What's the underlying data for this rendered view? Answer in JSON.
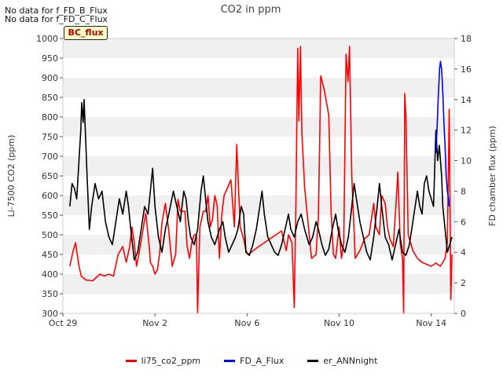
{
  "notes": [
    "No data for f_FD_B_Flux",
    "No data for f_FD_C_Flux"
  ],
  "badge": "BC_flux",
  "chart_data": {
    "type": "line",
    "title": "CO2 in ppm",
    "ylabel": "Li-7500 CO2 (ppm)",
    "y2label": "FD chamber flux (ppm)",
    "xlim": [
      0,
      17
    ],
    "ylim": [
      300,
      1000
    ],
    "y2lim": [
      0,
      18
    ],
    "grid": "horizontal bands",
    "legend_placement": "bottom-center",
    "xticks": [
      {
        "x": 0,
        "label": "Oct 29"
      },
      {
        "x": 4,
        "label": "Nov 2"
      },
      {
        "x": 8,
        "label": "Nov 6"
      },
      {
        "x": 12,
        "label": "Nov 10"
      },
      {
        "x": 16,
        "label": "Nov 14"
      }
    ],
    "yticks": [
      300,
      350,
      400,
      450,
      500,
      550,
      600,
      650,
      700,
      750,
      800,
      850,
      900,
      950,
      1000
    ],
    "y2ticks": [
      0,
      2,
      4,
      6,
      8,
      10,
      12,
      14,
      16,
      18
    ],
    "series": [
      {
        "name": "li75_co2_ppm",
        "color": "#ff0000",
        "axis": "left",
        "points": [
          [
            0.3,
            420
          ],
          [
            0.45,
            460
          ],
          [
            0.55,
            480
          ],
          [
            0.7,
            420
          ],
          [
            0.8,
            395
          ],
          [
            1.0,
            385
          ],
          [
            1.3,
            383
          ],
          [
            1.6,
            400
          ],
          [
            1.8,
            395
          ],
          [
            2.0,
            400
          ],
          [
            2.2,
            395
          ],
          [
            2.4,
            450
          ],
          [
            2.6,
            470
          ],
          [
            2.75,
            430
          ],
          [
            2.9,
            470
          ],
          [
            3.0,
            520
          ],
          [
            3.1,
            480
          ],
          [
            3.2,
            420
          ],
          [
            3.3,
            450
          ],
          [
            3.5,
            520
          ],
          [
            3.6,
            555
          ],
          [
            3.75,
            470
          ],
          [
            3.8,
            430
          ],
          [
            3.9,
            420
          ],
          [
            4.0,
            400
          ],
          [
            4.1,
            410
          ],
          [
            4.2,
            450
          ],
          [
            4.3,
            530
          ],
          [
            4.45,
            580
          ],
          [
            4.6,
            510
          ],
          [
            4.75,
            420
          ],
          [
            4.9,
            450
          ],
          [
            5.0,
            590
          ],
          [
            5.1,
            560
          ],
          [
            5.3,
            560
          ],
          [
            5.4,
            470
          ],
          [
            5.5,
            440
          ],
          [
            5.6,
            480
          ],
          [
            5.7,
            500
          ],
          [
            5.8,
            500
          ],
          [
            5.85,
            300
          ],
          [
            5.95,
            520
          ],
          [
            6.1,
            560
          ],
          [
            6.2,
            560
          ],
          [
            6.3,
            600
          ],
          [
            6.4,
            520
          ],
          [
            6.5,
            540
          ],
          [
            6.6,
            600
          ],
          [
            6.7,
            575
          ],
          [
            6.8,
            440
          ],
          [
            6.9,
            550
          ],
          [
            7.0,
            600
          ],
          [
            7.15,
            620
          ],
          [
            7.3,
            640
          ],
          [
            7.45,
            520
          ],
          [
            7.55,
            730
          ],
          [
            7.7,
            520
          ],
          [
            7.85,
            490
          ],
          [
            7.95,
            460
          ],
          [
            8.05,
            450
          ],
          [
            8.5,
            470
          ],
          [
            9.0,
            490
          ],
          [
            9.5,
            510
          ],
          [
            9.7,
            460
          ],
          [
            9.8,
            500
          ],
          [
            9.95,
            480
          ],
          [
            10.05,
            315
          ],
          [
            10.12,
            580
          ],
          [
            10.2,
            975
          ],
          [
            10.25,
            790
          ],
          [
            10.32,
            980
          ],
          [
            10.38,
            760
          ],
          [
            10.5,
            620
          ],
          [
            10.8,
            440
          ],
          [
            11.0,
            450
          ],
          [
            11.1,
            550
          ],
          [
            11.2,
            905
          ],
          [
            11.35,
            870
          ],
          [
            11.55,
            805
          ],
          [
            11.65,
            560
          ],
          [
            11.75,
            450
          ],
          [
            11.85,
            440
          ],
          [
            12.0,
            520
          ],
          [
            12.1,
            440
          ],
          [
            12.2,
            480
          ],
          [
            12.3,
            960
          ],
          [
            12.38,
            890
          ],
          [
            12.45,
            980
          ],
          [
            12.55,
            650
          ],
          [
            12.7,
            440
          ],
          [
            12.9,
            460
          ],
          [
            13.1,
            490
          ],
          [
            13.3,
            500
          ],
          [
            13.5,
            580
          ],
          [
            13.6,
            520
          ],
          [
            13.75,
            500
          ],
          [
            13.85,
            600
          ],
          [
            14.0,
            580
          ],
          [
            14.1,
            520
          ],
          [
            14.2,
            490
          ],
          [
            14.35,
            470
          ],
          [
            14.45,
            560
          ],
          [
            14.55,
            660
          ],
          [
            14.65,
            480
          ],
          [
            14.75,
            440
          ],
          [
            14.8,
            300
          ],
          [
            14.85,
            860
          ],
          [
            14.9,
            800
          ],
          [
            15.0,
            500
          ],
          [
            15.2,
            460
          ],
          [
            15.4,
            440
          ],
          [
            15.6,
            430
          ],
          [
            15.8,
            425
          ],
          [
            16.0,
            420
          ],
          [
            16.2,
            428
          ],
          [
            16.4,
            420
          ],
          [
            16.6,
            440
          ],
          [
            16.7,
            480
          ],
          [
            16.78,
            820
          ],
          [
            16.85,
            335
          ],
          [
            16.9,
            450
          ]
        ]
      },
      {
        "name": "FD_A_Flux",
        "color": "#0000ff",
        "axis": "right",
        "points": [
          [
            16.2,
            10.5
          ],
          [
            16.25,
            12.0
          ],
          [
            16.3,
            14.0
          ],
          [
            16.36,
            16.0
          ],
          [
            16.4,
            16.5
          ],
          [
            16.45,
            16.0
          ],
          [
            16.5,
            14.5
          ],
          [
            16.55,
            12.5
          ],
          [
            16.6,
            11.0
          ],
          [
            16.65,
            9.0
          ],
          [
            16.7,
            8.0
          ],
          [
            16.75,
            7.5
          ],
          [
            16.78,
            7.0
          ]
        ]
      },
      {
        "name": "er_ANNnight",
        "color": "#000000",
        "axis": "right",
        "points": [
          [
            0.3,
            7.0
          ],
          [
            0.4,
            8.5
          ],
          [
            0.5,
            8.2
          ],
          [
            0.6,
            7.5
          ],
          [
            0.7,
            10.0
          ],
          [
            0.78,
            12.0
          ],
          [
            0.82,
            13.8
          ],
          [
            0.88,
            12.5
          ],
          [
            0.92,
            14.0
          ],
          [
            1.0,
            11.0
          ],
          [
            1.05,
            9.0
          ],
          [
            1.15,
            5.5
          ],
          [
            1.25,
            7.0
          ],
          [
            1.4,
            8.5
          ],
          [
            1.55,
            7.5
          ],
          [
            1.7,
            8.0
          ],
          [
            1.85,
            6.0
          ],
          [
            2.0,
            5.0
          ],
          [
            2.15,
            4.5
          ],
          [
            2.3,
            6.0
          ],
          [
            2.45,
            7.5
          ],
          [
            2.6,
            6.5
          ],
          [
            2.75,
            8.0
          ],
          [
            2.85,
            7.0
          ],
          [
            2.95,
            5.5
          ],
          [
            3.1,
            3.5
          ],
          [
            3.25,
            4.0
          ],
          [
            3.4,
            5.5
          ],
          [
            3.55,
            7.0
          ],
          [
            3.7,
            6.5
          ],
          [
            3.8,
            8.0
          ],
          [
            3.9,
            9.5
          ],
          [
            4.0,
            7.0
          ],
          [
            4.15,
            5.0
          ],
          [
            4.3,
            4.0
          ],
          [
            4.45,
            5.5
          ],
          [
            4.6,
            6.5
          ],
          [
            4.8,
            8.0
          ],
          [
            4.95,
            7.0
          ],
          [
            5.1,
            6.0
          ],
          [
            5.25,
            8.0
          ],
          [
            5.35,
            7.5
          ],
          [
            5.45,
            6.0
          ],
          [
            5.55,
            5.0
          ],
          [
            5.7,
            4.5
          ],
          [
            5.85,
            5.5
          ],
          [
            6.0,
            8.0
          ],
          [
            6.1,
            9.0
          ],
          [
            6.2,
            7.5
          ],
          [
            6.3,
            6.0
          ],
          [
            6.45,
            5.0
          ],
          [
            6.6,
            4.5
          ],
          [
            6.8,
            5.5
          ],
          [
            6.95,
            6.0
          ],
          [
            7.05,
            5.0
          ],
          [
            7.2,
            4.0
          ],
          [
            7.35,
            4.5
          ],
          [
            7.5,
            5.0
          ],
          [
            7.6,
            5.5
          ],
          [
            7.75,
            7.0
          ],
          [
            7.85,
            6.5
          ],
          [
            7.95,
            4.0
          ],
          [
            8.1,
            3.8
          ],
          [
            8.25,
            4.5
          ],
          [
            8.4,
            5.5
          ],
          [
            8.55,
            7.0
          ],
          [
            8.65,
            8.0
          ],
          [
            8.75,
            6.5
          ],
          [
            8.9,
            5.0
          ],
          [
            9.05,
            4.5
          ],
          [
            9.2,
            4.0
          ],
          [
            9.35,
            3.8
          ],
          [
            9.5,
            4.5
          ],
          [
            9.65,
            5.5
          ],
          [
            9.8,
            6.5
          ],
          [
            9.9,
            5.5
          ],
          [
            10.05,
            5.0
          ],
          [
            10.2,
            6.0
          ],
          [
            10.35,
            6.5
          ],
          [
            10.5,
            5.5
          ],
          [
            10.7,
            4.5
          ],
          [
            10.85,
            5.0
          ],
          [
            11.0,
            6.0
          ],
          [
            11.1,
            5.5
          ],
          [
            11.25,
            4.5
          ],
          [
            11.4,
            3.8
          ],
          [
            11.55,
            4.2
          ],
          [
            11.7,
            5.5
          ],
          [
            11.85,
            6.5
          ],
          [
            11.95,
            5.5
          ],
          [
            12.1,
            4.5
          ],
          [
            12.25,
            4.0
          ],
          [
            12.4,
            5.0
          ],
          [
            12.55,
            7.0
          ],
          [
            12.65,
            8.5
          ],
          [
            12.75,
            7.5
          ],
          [
            12.9,
            6.0
          ],
          [
            13.05,
            5.0
          ],
          [
            13.2,
            4.0
          ],
          [
            13.35,
            3.5
          ],
          [
            13.5,
            5.0
          ],
          [
            13.65,
            7.0
          ],
          [
            13.75,
            8.5
          ],
          [
            13.85,
            7.0
          ],
          [
            14.0,
            5.0
          ],
          [
            14.15,
            4.5
          ],
          [
            14.3,
            3.5
          ],
          [
            14.45,
            4.5
          ],
          [
            14.6,
            5.5
          ],
          [
            14.75,
            4.0
          ],
          [
            14.9,
            3.8
          ],
          [
            15.05,
            4.5
          ],
          [
            15.2,
            6.0
          ],
          [
            15.3,
            7.0
          ],
          [
            15.4,
            8.0
          ],
          [
            15.5,
            7.0
          ],
          [
            15.6,
            6.5
          ],
          [
            15.7,
            8.5
          ],
          [
            15.8,
            9.0
          ],
          [
            15.9,
            8.0
          ],
          [
            16.0,
            7.5
          ],
          [
            16.1,
            7.0
          ],
          [
            16.2,
            12.0
          ],
          [
            16.28,
            10.0
          ],
          [
            16.35,
            11.0
          ],
          [
            16.45,
            9.0
          ],
          [
            16.5,
            7.0
          ],
          [
            16.6,
            5.5
          ],
          [
            16.7,
            4.0
          ],
          [
            16.8,
            4.5
          ],
          [
            16.9,
            5.0
          ]
        ]
      }
    ]
  }
}
